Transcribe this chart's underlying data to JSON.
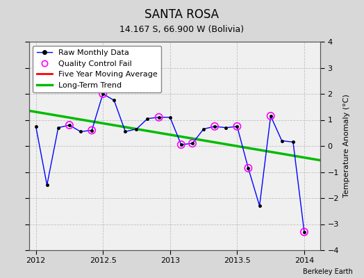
{
  "title": "SANTA ROSA",
  "subtitle": "14.167 S, 66.900 W (Bolivia)",
  "ylabel": "Temperature Anomaly (°C)",
  "credit": "Berkeley Earth",
  "ylim": [
    -4,
    4
  ],
  "xlim": [
    2011.95,
    2014.12
  ],
  "xticks": [
    2012,
    2012.5,
    2013,
    2013.5,
    2014
  ],
  "yticks": [
    -4,
    -3,
    -2,
    -1,
    0,
    1,
    2,
    3,
    4
  ],
  "bg_color": "#d8d8d8",
  "plot_bg_color": "#f0f0f0",
  "raw_x": [
    2012.0,
    2012.083,
    2012.167,
    2012.25,
    2012.333,
    2012.417,
    2012.5,
    2012.583,
    2012.667,
    2012.75,
    2012.833,
    2012.917,
    2013.0,
    2013.083,
    2013.167,
    2013.25,
    2013.333,
    2013.417,
    2013.5,
    2013.583,
    2013.667,
    2013.75,
    2013.833,
    2013.917,
    2014.0
  ],
  "raw_y": [
    0.75,
    -1.5,
    0.7,
    0.8,
    0.55,
    0.6,
    2.0,
    1.75,
    0.55,
    0.65,
    1.05,
    1.1,
    1.1,
    0.05,
    0.1,
    0.65,
    0.75,
    0.7,
    0.75,
    -0.85,
    -2.3,
    1.15,
    0.2,
    0.15,
    -3.3
  ],
  "qc_fail_x": [
    2012.25,
    2012.417,
    2012.5,
    2012.917,
    2013.083,
    2013.167,
    2013.333,
    2013.5,
    2013.583,
    2013.75,
    2014.0
  ],
  "qc_fail_y": [
    0.8,
    0.6,
    2.0,
    1.1,
    0.05,
    0.1,
    0.75,
    0.75,
    -0.85,
    1.15,
    -3.3
  ],
  "trend_x": [
    2011.95,
    2014.12
  ],
  "trend_y": [
    1.35,
    -0.55
  ],
  "raw_line_color": "#0000ff",
  "raw_marker_color": "#000000",
  "qc_color": "#ff00ff",
  "trend_color": "#00bb00",
  "mavg_color": "#ff0000",
  "title_fontsize": 12,
  "subtitle_fontsize": 9,
  "tick_fontsize": 8,
  "ylabel_fontsize": 8,
  "legend_fontsize": 8,
  "credit_fontsize": 7
}
